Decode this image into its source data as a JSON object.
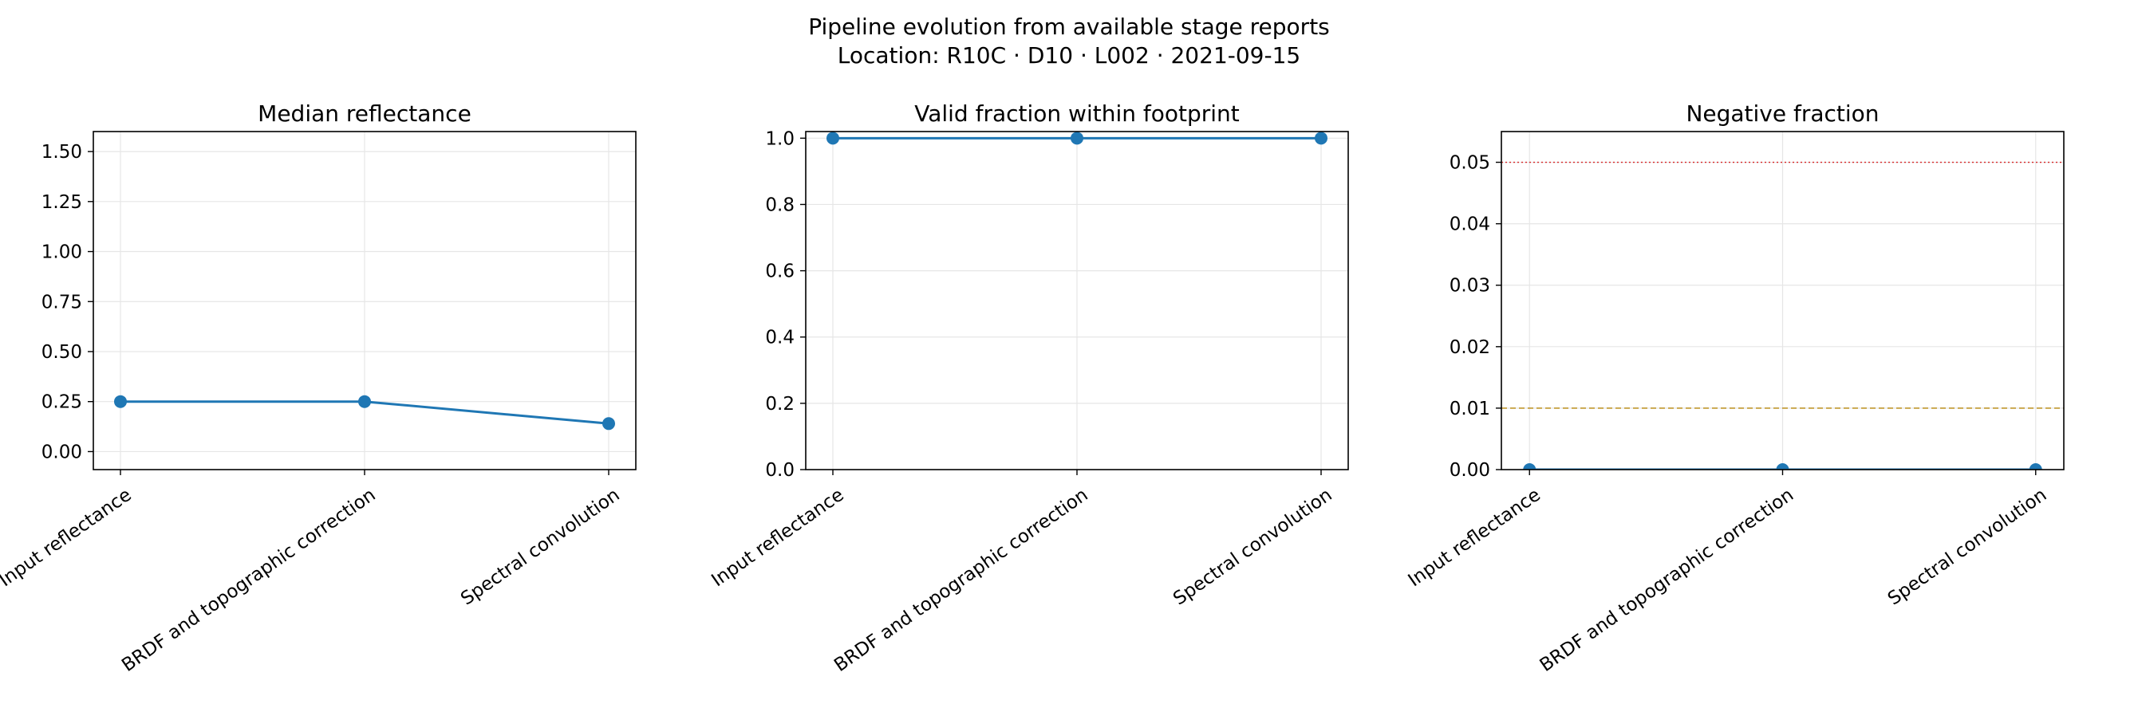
{
  "figure": {
    "title_line1": "Pipeline evolution from available stage reports",
    "title_line2": "Location: R10C · D10 · L002 · 2021-09-15"
  },
  "colors": {
    "series": "#1f77b4",
    "grid": "#e6e6e6",
    "threshold_high": "#d62728",
    "threshold_low": "#b8860b"
  },
  "chart_data": [
    {
      "type": "line",
      "title": "Median reflectance",
      "categories": [
        "Input reflectance",
        "BRDF and topographic correction",
        "Spectral convolution"
      ],
      "series": [
        {
          "values": [
            0.25,
            0.25,
            0.14
          ]
        }
      ],
      "ylim": [
        -0.09,
        1.6
      ],
      "yticks": [
        0.0,
        0.25,
        0.5,
        0.75,
        1.0,
        1.25,
        1.5
      ],
      "ytick_labels": [
        "0.00",
        "0.25",
        "0.50",
        "0.75",
        "1.00",
        "1.25",
        "1.50"
      ],
      "grid": true,
      "reference_lines": []
    },
    {
      "type": "line",
      "title": "Valid fraction within footprint",
      "categories": [
        "Input reflectance",
        "BRDF and topographic correction",
        "Spectral convolution"
      ],
      "series": [
        {
          "values": [
            1.0,
            1.0,
            1.0
          ]
        }
      ],
      "ylim": [
        0.0,
        1.02
      ],
      "yticks": [
        0.0,
        0.2,
        0.4,
        0.6,
        0.8,
        1.0
      ],
      "ytick_labels": [
        "0.0",
        "0.2",
        "0.4",
        "0.6",
        "0.8",
        "1.0"
      ],
      "grid": true,
      "reference_lines": []
    },
    {
      "type": "line",
      "title": "Negative fraction",
      "categories": [
        "Input reflectance",
        "BRDF and topographic correction",
        "Spectral convolution"
      ],
      "series": [
        {
          "values": [
            0.0,
            0.0,
            0.0
          ]
        }
      ],
      "ylim": [
        0.0,
        0.055
      ],
      "yticks": [
        0.0,
        0.01,
        0.02,
        0.03,
        0.04,
        0.05
      ],
      "ytick_labels": [
        "0.00",
        "0.01",
        "0.02",
        "0.03",
        "0.04",
        "0.05"
      ],
      "grid": true,
      "reference_lines": [
        {
          "y": 0.05,
          "style": "dotted",
          "color": "#d62728"
        },
        {
          "y": 0.01,
          "style": "dashed",
          "color": "#b8860b"
        }
      ]
    }
  ]
}
